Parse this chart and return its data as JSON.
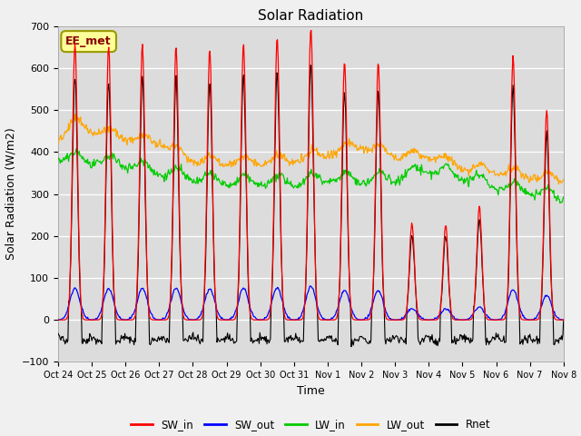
{
  "title": "Solar Radiation",
  "xlabel": "Time",
  "ylabel": "Solar Radiation (W/m2)",
  "ylim": [
    -100,
    700
  ],
  "background_color": "#dcdcdc",
  "fig_bg": "#f0f0f0",
  "annotation_text": "EE_met",
  "annotation_bg": "#ffff99",
  "annotation_border": "#999900",
  "line_colors": {
    "SW_in": "#ff0000",
    "SW_out": "#0000ff",
    "LW_in": "#00cc00",
    "LW_out": "#ffa500",
    "Rnet": "#000000"
  },
  "xtick_labels": [
    "Oct 24",
    "Oct 25",
    "Oct 26",
    "Oct 27",
    "Oct 28",
    "Oct 29",
    "Oct 30",
    "Oct 31",
    "Nov 1",
    "Nov 2",
    "Nov 3",
    "Nov 4",
    "Nov 5",
    "Nov 6",
    "Nov 7",
    "Nov 8"
  ],
  "n_days": 15,
  "seed": 42
}
